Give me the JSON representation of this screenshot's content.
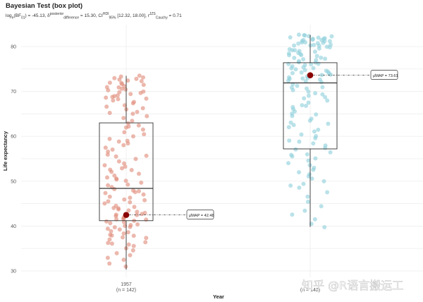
{
  "chart_data": {
    "type": "box",
    "title": "Bayesian Test (box plot)",
    "subtitle": {
      "bf_prefix": "log",
      "bf_sub": "e",
      "bf_mid": "(BF",
      "bf_mid_sub": "01",
      "bf_value": ") = -45.13, δ",
      "delta_sub": "difference",
      "delta_sup": "posterior",
      "delta_value": " = 15.30, CI",
      "ci_sub": "95%",
      "ci_sup": "HDI",
      "ci_value": " [12.32, 18.00], r",
      "r_sub": "Cauchy",
      "r_sup": "JZS",
      "r_value": " = 0.71"
    },
    "xlabel": "Year",
    "ylabel": "Life expectancy",
    "ylim": [
      28,
      84
    ],
    "yticks": [
      30,
      40,
      50,
      60,
      70,
      80
    ],
    "groups": [
      {
        "name": "1957",
        "n_label": "(n = 142)",
        "color": "#e08c7a",
        "box": {
          "q1": 41.2,
          "median": 48.4,
          "q3": 63.0,
          "whisker_low": 30.3,
          "whisker_high": 73.5
        },
        "map_label": "μ̂MAP = 42.48",
        "map_value": 42.48,
        "points": [
          31.0,
          31.6,
          32.5,
          33.0,
          33.5,
          34.0,
          34.5,
          35.0,
          35.5,
          35.9,
          36.0,
          36.5,
          37.0,
          37.3,
          37.5,
          37.8,
          38.0,
          38.3,
          38.6,
          38.9,
          39.2,
          39.5,
          39.8,
          40.0,
          40.2,
          40.4,
          40.6,
          40.8,
          41.0,
          41.2,
          41.4,
          41.6,
          41.8,
          42.0,
          42.2,
          42.4,
          42.6,
          42.8,
          43.0,
          43.2,
          43.4,
          43.7,
          44.0,
          44.3,
          44.6,
          45.0,
          45.3,
          45.6,
          46.0,
          46.3,
          46.6,
          47.0,
          47.3,
          47.6,
          48.0,
          48.3,
          48.6,
          49.0,
          49.3,
          49.6,
          50.0,
          50.4,
          50.8,
          51.2,
          51.6,
          52.0,
          52.4,
          52.8,
          53.2,
          53.6,
          54.0,
          54.5,
          55.0,
          55.5,
          56.0,
          56.5,
          57.0,
          57.5,
          58.0,
          58.5,
          59.0,
          59.5,
          60.0,
          60.5,
          61.0,
          61.5,
          62.0,
          62.5,
          63.0,
          63.5,
          64.0,
          64.5,
          65.0,
          65.5,
          66.0,
          66.3,
          66.6,
          67.0,
          67.3,
          67.6,
          68.0,
          68.2,
          68.4,
          68.6,
          68.8,
          69.0,
          69.2,
          69.4,
          69.6,
          69.8,
          70.0,
          70.2,
          70.4,
          70.6,
          70.8,
          71.0,
          71.2,
          71.4,
          71.6,
          71.8,
          72.0,
          72.2,
          72.4,
          72.6,
          72.8,
          73.0,
          73.2,
          73.4,
          73.5,
          36.2,
          38.1,
          39.9,
          41.5,
          43.9,
          45.8,
          47.8,
          50.6,
          52.6,
          55.7,
          58.8,
          62.2,
          65.2
        ]
      },
      {
        "name": "",
        "n_label": "(n = 142)",
        "color": "#8fd0dc",
        "box": {
          "q1": 57.2,
          "median": 71.9,
          "q3": 76.4,
          "whisker_low": 39.8,
          "whisker_high": 82.6
        },
        "map_label": "μ̂MAP = 73.61",
        "map_value": 73.61,
        "points": [
          39.8,
          40.5,
          41.5,
          42.5,
          43.5,
          44.5,
          45.5,
          46.5,
          47.5,
          48.5,
          49.0,
          49.5,
          50.0,
          50.5,
          51.0,
          51.5,
          52.0,
          52.5,
          53.0,
          53.5,
          54.0,
          54.5,
          55.0,
          55.5,
          56.0,
          56.5,
          57.0,
          57.5,
          58.0,
          58.5,
          59.0,
          59.5,
          60.0,
          60.5,
          61.0,
          61.5,
          62.0,
          62.5,
          63.0,
          63.5,
          64.0,
          64.5,
          65.0,
          65.5,
          66.0,
          66.5,
          67.0,
          67.5,
          68.0,
          68.5,
          69.0,
          69.3,
          69.6,
          70.0,
          70.3,
          70.6,
          71.0,
          71.3,
          71.6,
          72.0,
          72.2,
          72.4,
          72.6,
          72.8,
          73.0,
          73.2,
          73.4,
          73.6,
          73.8,
          74.0,
          74.2,
          74.4,
          74.6,
          74.8,
          75.0,
          75.2,
          75.4,
          75.6,
          75.8,
          76.0,
          76.2,
          76.4,
          76.6,
          76.8,
          77.0,
          77.2,
          77.4,
          77.6,
          77.8,
          78.0,
          78.2,
          78.4,
          78.6,
          78.8,
          79.0,
          79.2,
          79.4,
          79.6,
          79.8,
          80.0,
          80.1,
          80.2,
          80.3,
          80.4,
          80.5,
          80.6,
          80.7,
          80.8,
          80.9,
          81.0,
          81.1,
          81.2,
          81.3,
          81.4,
          81.5,
          81.6,
          81.7,
          81.8,
          81.9,
          82.0,
          82.1,
          82.2,
          82.3,
          82.4,
          82.5,
          82.6,
          79.1,
          78.3,
          77.1,
          76.1,
          75.1,
          74.1,
          72.9,
          70.9,
          68.8,
          66.8,
          64.8,
          62.8,
          58.8,
          55.8
        ]
      }
    ]
  },
  "watermark": "知乎 @R语言搬运工"
}
